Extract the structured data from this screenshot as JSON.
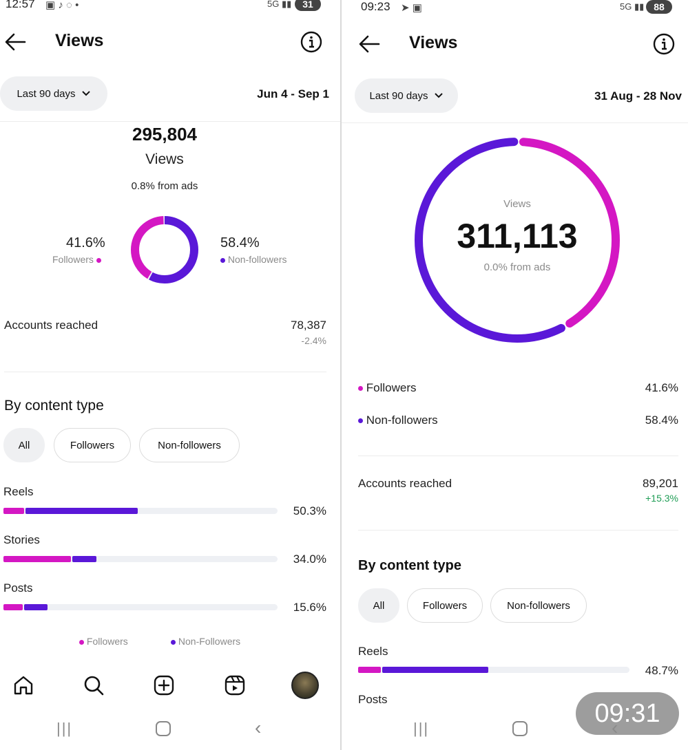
{
  "left": {
    "status": {
      "time": "12:57",
      "battery": "31"
    },
    "title": "Views",
    "range_label": "Last 90 days",
    "date_range": "Jun 4 - Sep 1",
    "total_views": "295,804",
    "views_label": "Views",
    "ads_note": "0.8% from ads",
    "followers_pct": "41.6%",
    "followers_label": "Followers",
    "nonfollowers_pct": "58.4%",
    "nonfollowers_label": "Non-followers",
    "accounts_reached_label": "Accounts reached",
    "accounts_reached_value": "78,387",
    "accounts_reached_change": "-2.4%",
    "by_content_type": "By content type",
    "chips": [
      "All",
      "Followers",
      "Non-followers"
    ],
    "content_rows": [
      {
        "label": "Reels",
        "value": "50.3%",
        "followers_share": 0.081,
        "nonfollowers_share": 0.41
      },
      {
        "label": "Stories",
        "value": "34.0%",
        "followers_share": 0.25,
        "nonfollowers_share": 0.09
      },
      {
        "label": "Posts",
        "value": "15.6%",
        "followers_share": 0.075,
        "nonfollowers_share": 0.085
      }
    ],
    "legend": [
      "Followers",
      "Non-Followers"
    ],
    "donut": {
      "followers": 41.6,
      "nonfollowers": 58.4
    }
  },
  "right": {
    "status": {
      "time": "09:23",
      "battery": "88"
    },
    "title": "Views",
    "range_label": "Last 90 days",
    "date_range": "31 Aug - 28 Nov",
    "views_label": "Views",
    "total_views": "311,113",
    "ads_note": "0.0% from ads",
    "followers_label": "Followers",
    "followers_pct": "41.6%",
    "nonfollowers_label": "Non-followers",
    "nonfollowers_pct": "58.4%",
    "accounts_reached_label": "Accounts reached",
    "accounts_reached_value": "89,201",
    "accounts_reached_change": "+15.3%",
    "by_content_type": "By content type",
    "chips": [
      "All",
      "Followers",
      "Non-followers"
    ],
    "content_rows": [
      {
        "label": "Reels",
        "value": "48.7%",
        "followers_share": 0.09,
        "nonfollowers_share": 0.39
      },
      {
        "label": "Posts",
        "value": "",
        "followers_share": 0,
        "nonfollowers_share": 0
      }
    ],
    "ring": {
      "followers": 41.6,
      "nonfollowers": 58.4
    }
  },
  "overlay_time": "09:31",
  "colors": {
    "followers": "#d417c3",
    "nonfollowers": "#5a18d8",
    "positive": "#1f9d55"
  },
  "icons": [
    "back-arrow-icon",
    "info-icon",
    "chevron-down-icon",
    "home-icon",
    "search-icon",
    "create-icon",
    "reels-icon",
    "avatar"
  ]
}
